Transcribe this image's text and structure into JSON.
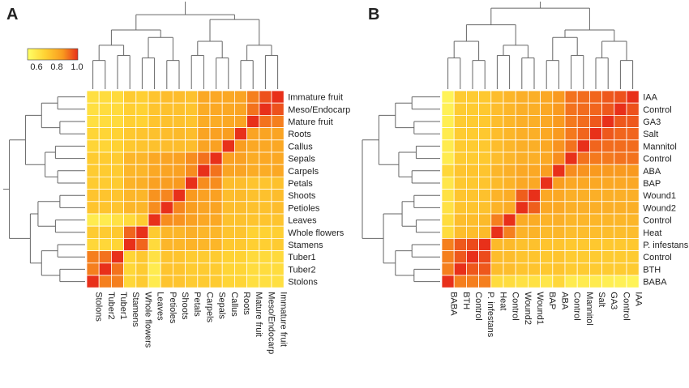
{
  "chart_data": [
    {
      "type": "heatmap",
      "panel_label": "A",
      "color_key": {
        "ticks": [
          "0.6",
          "0.8",
          "1.0"
        ],
        "range": [
          0.5,
          1.0
        ],
        "colors": [
          "#ffff66",
          "#ffd233",
          "#f99a1f",
          "#e8301a"
        ]
      },
      "rows": [
        "Immature fruit",
        "Meso/Endocarp",
        "Mature fruit",
        "Roots",
        "Callus",
        "Sepals",
        "Carpels",
        "Petals",
        "Shoots",
        "Petioles",
        "Leaves",
        "Whole flowers",
        "Stamens",
        "Tuber1",
        "Tuber2",
        "Stolons"
      ],
      "columns": [
        "Stolons",
        "Tuber2",
        "Tuber1",
        "Stamens",
        "Whole flowers",
        "Leaves",
        "Petioles",
        "Shoots",
        "Petals",
        "Carpels",
        "Sepals",
        "Callus",
        "Roots",
        "Mature fruit",
        "Meso/Endocarp",
        "Immature fruit"
      ],
      "values": [
        [
          0.63,
          0.64,
          0.65,
          0.7,
          0.69,
          0.72,
          0.74,
          0.74,
          0.73,
          0.8,
          0.8,
          0.8,
          0.81,
          0.88,
          0.95,
          1.0
        ],
        [
          0.63,
          0.64,
          0.65,
          0.69,
          0.68,
          0.72,
          0.73,
          0.73,
          0.72,
          0.79,
          0.8,
          0.8,
          0.81,
          0.9,
          1.0,
          0.95
        ],
        [
          0.63,
          0.64,
          0.65,
          0.69,
          0.68,
          0.72,
          0.73,
          0.73,
          0.72,
          0.79,
          0.79,
          0.8,
          0.81,
          1.0,
          0.9,
          0.88
        ],
        [
          0.67,
          0.67,
          0.68,
          0.71,
          0.72,
          0.73,
          0.74,
          0.75,
          0.74,
          0.81,
          0.82,
          0.83,
          1.0,
          0.81,
          0.81,
          0.81
        ],
        [
          0.67,
          0.67,
          0.68,
          0.71,
          0.72,
          0.73,
          0.74,
          0.74,
          0.74,
          0.81,
          0.82,
          1.0,
          0.83,
          0.8,
          0.8,
          0.8
        ],
        [
          0.7,
          0.7,
          0.7,
          0.76,
          0.76,
          0.8,
          0.81,
          0.82,
          0.86,
          0.9,
          1.0,
          0.82,
          0.82,
          0.79,
          0.8,
          0.8
        ],
        [
          0.7,
          0.7,
          0.7,
          0.76,
          0.76,
          0.8,
          0.81,
          0.82,
          0.86,
          1.0,
          0.9,
          0.81,
          0.81,
          0.79,
          0.79,
          0.8
        ],
        [
          0.7,
          0.7,
          0.7,
          0.77,
          0.78,
          0.82,
          0.83,
          0.84,
          1.0,
          0.86,
          0.86,
          0.74,
          0.74,
          0.72,
          0.72,
          0.73
        ],
        [
          0.72,
          0.72,
          0.72,
          0.76,
          0.76,
          0.85,
          0.87,
          1.0,
          0.84,
          0.82,
          0.82,
          0.74,
          0.75,
          0.73,
          0.73,
          0.74
        ],
        [
          0.72,
          0.72,
          0.72,
          0.76,
          0.76,
          0.86,
          1.0,
          0.87,
          0.83,
          0.81,
          0.81,
          0.74,
          0.74,
          0.73,
          0.73,
          0.74
        ],
        [
          0.58,
          0.58,
          0.62,
          0.65,
          0.7,
          1.0,
          0.86,
          0.85,
          0.82,
          0.8,
          0.8,
          0.73,
          0.73,
          0.72,
          0.72,
          0.72
        ],
        [
          0.7,
          0.7,
          0.71,
          0.92,
          1.0,
          0.7,
          0.76,
          0.76,
          0.78,
          0.76,
          0.76,
          0.72,
          0.72,
          0.68,
          0.68,
          0.69
        ],
        [
          0.66,
          0.66,
          0.67,
          1.0,
          0.92,
          0.65,
          0.76,
          0.76,
          0.77,
          0.76,
          0.76,
          0.71,
          0.71,
          0.69,
          0.69,
          0.7
        ],
        [
          0.88,
          0.9,
          1.0,
          0.67,
          0.71,
          0.62,
          0.72,
          0.72,
          0.7,
          0.7,
          0.7,
          0.68,
          0.68,
          0.65,
          0.65,
          0.65
        ],
        [
          0.88,
          1.0,
          0.9,
          0.66,
          0.7,
          0.58,
          0.72,
          0.72,
          0.7,
          0.7,
          0.7,
          0.67,
          0.67,
          0.64,
          0.64,
          0.64
        ],
        [
          1.0,
          0.88,
          0.88,
          0.66,
          0.7,
          0.58,
          0.72,
          0.72,
          0.7,
          0.7,
          0.7,
          0.67,
          0.67,
          0.63,
          0.63,
          0.63
        ]
      ]
    },
    {
      "type": "heatmap",
      "panel_label": "B",
      "rows": [
        "IAA",
        "Control",
        "GA3",
        "Salt",
        "Mannitol",
        "Control",
        "ABA",
        "BAP",
        "Wound1",
        "Wound2",
        "Control",
        "Heat",
        "P. infestans",
        "Control",
        "BTH",
        "BABA"
      ],
      "columns": [
        "BABA",
        "BTH",
        "Control",
        "P. infestans",
        "Heat",
        "Control",
        "Wound2",
        "Wound1",
        "BAP",
        "ABA",
        "Control",
        "Mannitol",
        "Salt",
        "GA3",
        "Control",
        "IAA"
      ],
      "values": [
        [
          0.55,
          0.7,
          0.7,
          0.71,
          0.74,
          0.76,
          0.78,
          0.78,
          0.8,
          0.84,
          0.9,
          0.91,
          0.92,
          0.94,
          0.95,
          1.0
        ],
        [
          0.56,
          0.7,
          0.7,
          0.71,
          0.74,
          0.76,
          0.78,
          0.78,
          0.8,
          0.84,
          0.9,
          0.91,
          0.92,
          0.94,
          1.0,
          0.95
        ],
        [
          0.57,
          0.7,
          0.7,
          0.71,
          0.74,
          0.76,
          0.78,
          0.78,
          0.8,
          0.84,
          0.89,
          0.91,
          0.94,
          1.0,
          0.94,
          0.94
        ],
        [
          0.58,
          0.7,
          0.7,
          0.71,
          0.74,
          0.76,
          0.78,
          0.78,
          0.8,
          0.84,
          0.89,
          0.92,
          1.0,
          0.94,
          0.92,
          0.92
        ],
        [
          0.58,
          0.7,
          0.7,
          0.71,
          0.74,
          0.76,
          0.78,
          0.78,
          0.8,
          0.85,
          0.9,
          1.0,
          0.92,
          0.91,
          0.91,
          0.91
        ],
        [
          0.58,
          0.7,
          0.7,
          0.71,
          0.74,
          0.76,
          0.78,
          0.78,
          0.8,
          0.86,
          1.0,
          0.9,
          0.89,
          0.89,
          0.9,
          0.9
        ],
        [
          0.66,
          0.72,
          0.72,
          0.72,
          0.76,
          0.78,
          0.8,
          0.8,
          0.83,
          1.0,
          0.86,
          0.85,
          0.84,
          0.84,
          0.84,
          0.84
        ],
        [
          0.6,
          0.71,
          0.71,
          0.72,
          0.75,
          0.77,
          0.8,
          0.8,
          1.0,
          0.83,
          0.8,
          0.8,
          0.8,
          0.8,
          0.8,
          0.8
        ],
        [
          0.62,
          0.72,
          0.72,
          0.73,
          0.77,
          0.79,
          0.93,
          1.0,
          0.8,
          0.8,
          0.78,
          0.78,
          0.78,
          0.78,
          0.78,
          0.78
        ],
        [
          0.62,
          0.72,
          0.72,
          0.73,
          0.77,
          0.79,
          1.0,
          0.93,
          0.8,
          0.8,
          0.78,
          0.78,
          0.78,
          0.78,
          0.78,
          0.78
        ],
        [
          0.64,
          0.74,
          0.74,
          0.75,
          0.88,
          1.0,
          0.79,
          0.79,
          0.77,
          0.78,
          0.76,
          0.76,
          0.76,
          0.76,
          0.76,
          0.76
        ],
        [
          0.64,
          0.74,
          0.74,
          0.75,
          1.0,
          0.88,
          0.77,
          0.77,
          0.75,
          0.76,
          0.74,
          0.74,
          0.74,
          0.74,
          0.74,
          0.74
        ],
        [
          0.88,
          0.94,
          0.96,
          1.0,
          0.75,
          0.75,
          0.73,
          0.73,
          0.72,
          0.72,
          0.71,
          0.71,
          0.71,
          0.71,
          0.71,
          0.71
        ],
        [
          0.88,
          0.94,
          1.0,
          0.96,
          0.74,
          0.74,
          0.72,
          0.72,
          0.71,
          0.72,
          0.7,
          0.7,
          0.7,
          0.7,
          0.7,
          0.7
        ],
        [
          0.88,
          1.0,
          0.94,
          0.94,
          0.74,
          0.74,
          0.72,
          0.72,
          0.71,
          0.72,
          0.7,
          0.7,
          0.7,
          0.7,
          0.7,
          0.7
        ],
        [
          1.0,
          0.88,
          0.88,
          0.88,
          0.64,
          0.64,
          0.62,
          0.62,
          0.6,
          0.66,
          0.58,
          0.58,
          0.58,
          0.57,
          0.56,
          0.55
        ]
      ]
    }
  ]
}
